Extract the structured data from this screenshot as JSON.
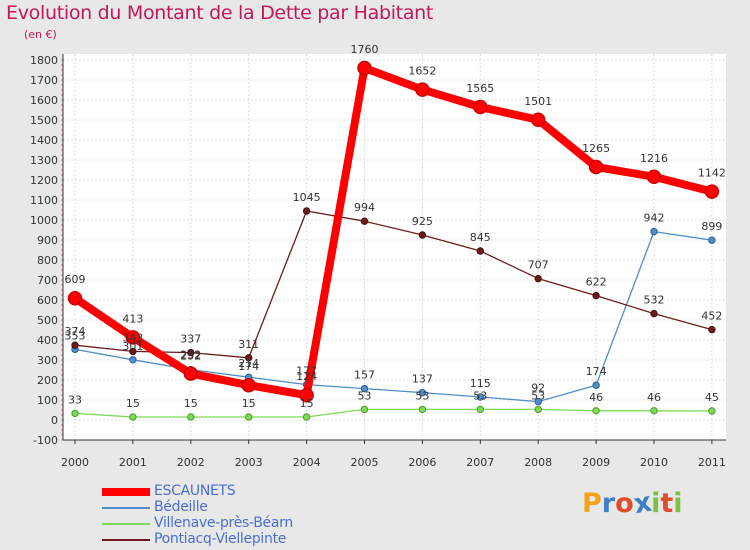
{
  "chart_data": {
    "type": "line",
    "title": "Evolution du Montant de la Dette par Habitant",
    "subtitle": "(en €)",
    "x": [
      "2000",
      "2001",
      "2002",
      "2003",
      "2004",
      "2005",
      "2006",
      "2007",
      "2008",
      "2009",
      "2010",
      "2011"
    ],
    "ylim": [
      -100,
      1800
    ],
    "yticks": [
      -100,
      0,
      100,
      200,
      300,
      400,
      500,
      600,
      700,
      800,
      900,
      1000,
      1100,
      1200,
      1300,
      1400,
      1500,
      1600,
      1700,
      1800
    ],
    "series": [
      {
        "name": "ESCAUNETS",
        "color": "#ff0000",
        "values": [
          609,
          413,
          232,
          174,
          124,
          1760,
          1652,
          1565,
          1501,
          1265,
          1216,
          1142
        ]
      },
      {
        "name": "Bédeille",
        "color": "#4f8ec9",
        "values": [
          353,
          301,
          252,
          214,
          177,
          157,
          137,
          115,
          92,
          174,
          942,
          899
        ]
      },
      {
        "name": "Villenave-près-Béarn",
        "color": "#7ed957",
        "values": [
          33,
          15,
          15,
          15,
          15,
          53,
          53,
          53,
          53,
          46,
          46,
          45
        ]
      },
      {
        "name": "Pontiacq-Viellepinte",
        "color": "#6b1b1b",
        "values": [
          374,
          343,
          337,
          311,
          1045,
          994,
          925,
          845,
          707,
          622,
          532,
          452
        ]
      }
    ]
  },
  "logo": {
    "text": "Proxiti",
    "colors": [
      "#f4a21c",
      "#3f7fc9",
      "#e04b2a",
      "#3f7fc9",
      "#7cc242",
      "#e04b2a",
      "#7cc242"
    ]
  }
}
